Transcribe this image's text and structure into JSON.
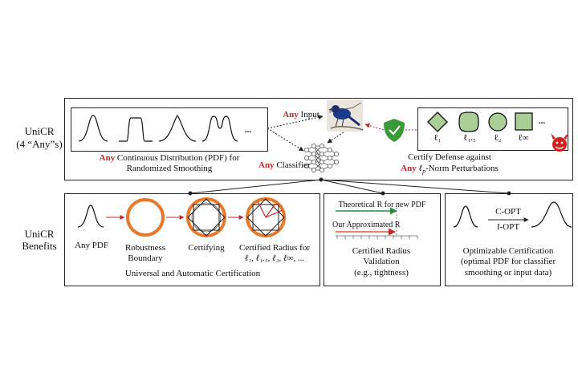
{
  "top": {
    "label_line1": "UniCR",
    "label_line2": "(4 “Any”s)",
    "pdf_caption_any": "Any",
    "pdf_caption_rest": " Continuous Distribution (PDF) for",
    "pdf_caption_line2": "Randomized Smoothing",
    "ellipsis": "...",
    "input_any": "Any",
    "input_rest": " Input",
    "classifier_any": "Any",
    "classifier_rest": " Classifier",
    "defense_line1": "Certify Defense against",
    "defense_any": "Any",
    "defense_norm": "ℓ",
    "defense_norm_sub": "p",
    "defense_rest": "-Norm Perturbations",
    "norm_labels": [
      "ℓ₁",
      "ℓ₁.₅",
      "ℓ₂",
      "ℓ∞"
    ],
    "norm_ellipsis": "...",
    "colors": {
      "accent_red": "#c0272d",
      "shield_green": "#3a9a3a",
      "norm_fill": "#a9cf96"
    }
  },
  "bottom": {
    "label_line1": "UniCR",
    "label_line2": "Benefits",
    "any_pdf": "Any PDF",
    "robustness_line1": "Robustness",
    "robustness_line2": "Boundary",
    "certifying": "Certifying",
    "cert_radius_line1": "Certified Radius for",
    "cert_radius_line2": "ℓ₁, ℓ₁.₅, ℓ₂, ℓ∞, ...",
    "universal_caption": "Universal and Automatic Certification",
    "theoretical_r": "Theoretical R for new PDF",
    "approximated_r": "Our Approximated R",
    "validation_line1": "Certified Radius",
    "validation_line2": "Validation",
    "validation_line3": "(e.g., tightness)",
    "c_opt": "C-OPT",
    "i_opt": "I-OPT",
    "opt_line1": "Optimizable Certification",
    "opt_line2": "(optimal PDF for classifier",
    "opt_line3": "smoothing or input data)",
    "colors": {
      "circle_orange": "#e8782a",
      "approx_red": "#e05a3a",
      "theoretical_green": "#2e8b3e"
    }
  }
}
